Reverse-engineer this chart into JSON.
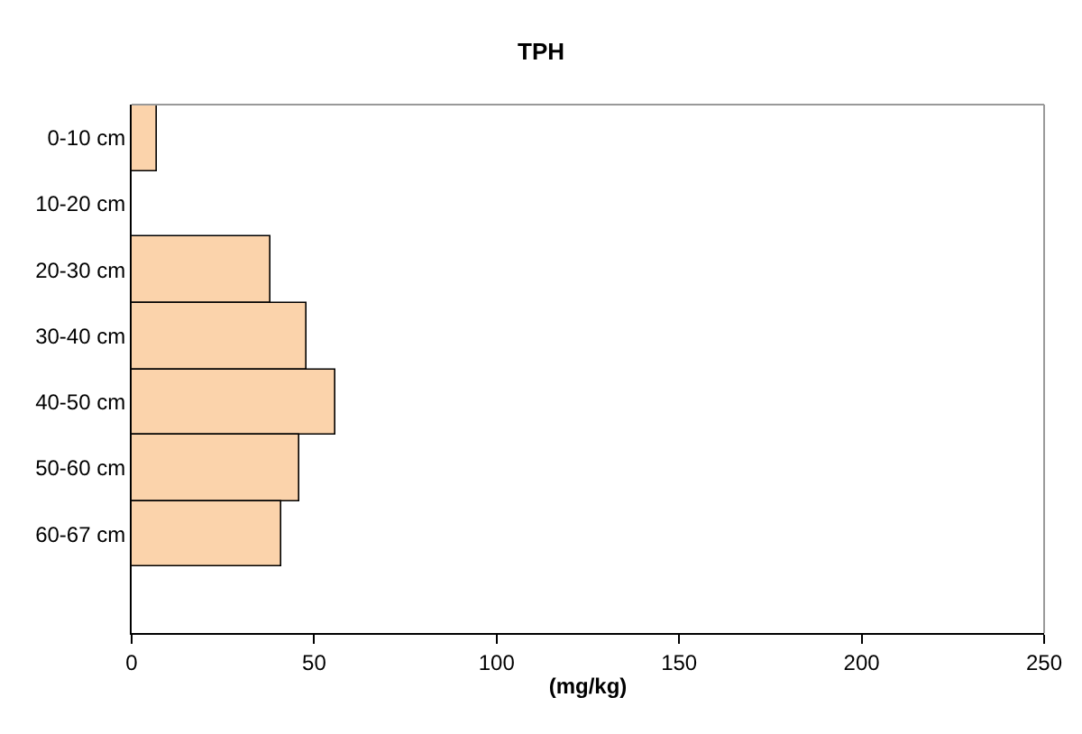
{
  "chart_data": {
    "type": "bar",
    "orientation": "horizontal",
    "title": "TPH",
    "xlabel": "(mg/kg)",
    "categories": [
      "0-10 cm",
      "10-20 cm",
      "20-30 cm",
      "30-40 cm",
      "40-50 cm",
      "50-60 cm",
      "60-67 cm",
      null
    ],
    "series": [
      {
        "color": "#fbd3ab",
        "values": [
          7,
          null,
          38,
          48,
          56,
          46,
          41,
          null
        ]
      }
    ],
    "xlim": [
      0,
      250
    ],
    "xticks": [
      0,
      50,
      100,
      150,
      200,
      250
    ]
  }
}
